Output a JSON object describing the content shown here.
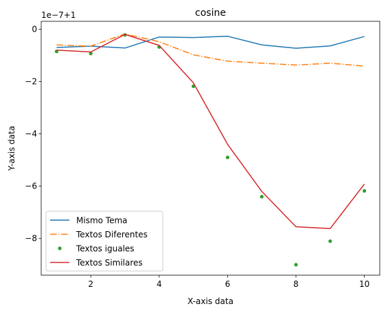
{
  "chart_data": {
    "type": "line",
    "title": "cosine",
    "xlabel": "X-axis data",
    "ylabel": "Y-axis data",
    "offset_text": "1e−7+1",
    "xlim": [
      0.55,
      10.45
    ],
    "ylim": [
      -9.4,
      0.3
    ],
    "x_ticks": [
      2,
      4,
      6,
      8,
      10
    ],
    "x_tick_labels": [
      "2",
      "4",
      "6",
      "8",
      "10"
    ],
    "y_ticks": [
      0,
      -2,
      -4,
      -6,
      -8
    ],
    "y_tick_labels": [
      "0",
      "−2",
      "−4",
      "−6",
      "−8"
    ],
    "grid": false,
    "legend_position": "lower-left",
    "x": [
      1,
      2,
      3,
      4,
      5,
      6,
      7,
      8,
      9,
      10
    ],
    "series": [
      {
        "name": "Mismo Tema",
        "style": "solid",
        "marker": "none",
        "color": "#1f77b4",
        "values": [
          -0.7,
          -0.65,
          -0.72,
          -0.3,
          -0.32,
          -0.27,
          -0.6,
          -0.73,
          -0.64,
          -0.28
        ]
      },
      {
        "name": "Textos Diferentes",
        "style": "dashdot",
        "marker": "none",
        "color": "#ff7f0e",
        "values": [
          -0.6,
          -0.65,
          -0.18,
          -0.48,
          -0.98,
          -1.22,
          -1.3,
          -1.37,
          -1.3,
          -1.41
        ]
      },
      {
        "name": "Textos iguales",
        "style": "none",
        "marker": "dot",
        "color": "#2ca02c",
        "values": [
          -0.85,
          -0.93,
          -0.22,
          -0.68,
          -2.18,
          -4.9,
          -6.4,
          -9.0,
          -8.1,
          -6.18
        ]
      },
      {
        "name": "Textos Similares",
        "style": "solid",
        "marker": "none",
        "color": "#d62728",
        "values": [
          -0.8,
          -0.87,
          -0.2,
          -0.62,
          -2.05,
          -4.4,
          -6.2,
          -7.55,
          -7.62,
          -5.92
        ]
      }
    ]
  }
}
